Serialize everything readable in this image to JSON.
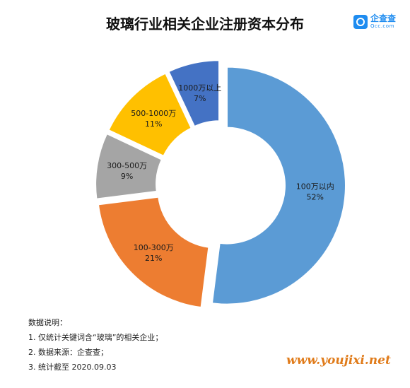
{
  "chart_data": {
    "type": "pie",
    "title": "玻璃行业相关企业注册资本分布",
    "slices": [
      {
        "label": "100万以内",
        "value": 52,
        "value_label": "52%",
        "color": "#5b9bd5"
      },
      {
        "label": "100-300万",
        "value": 21,
        "value_label": "21%",
        "color": "#ed7d31"
      },
      {
        "label": "300-500万",
        "value": 9,
        "value_label": "9%",
        "color": "#a5a5a5"
      },
      {
        "label": "500-1000万",
        "value": 11,
        "value_label": "11%",
        "color": "#ffc000"
      },
      {
        "label": "1000万以上",
        "value": 7,
        "value_label": "7%",
        "color": "#4472c4"
      }
    ]
  },
  "logo": {
    "name": "企查查",
    "sub": "Qcc.com"
  },
  "notes": {
    "heading": "数据说明：",
    "items": [
      "1. 仅统计关键词含“玻璃”的相关企业；",
      "2. 数据来源：企查查；",
      "3. 统计截至 2020.09.03"
    ]
  },
  "watermark": "www.youjixi.net"
}
